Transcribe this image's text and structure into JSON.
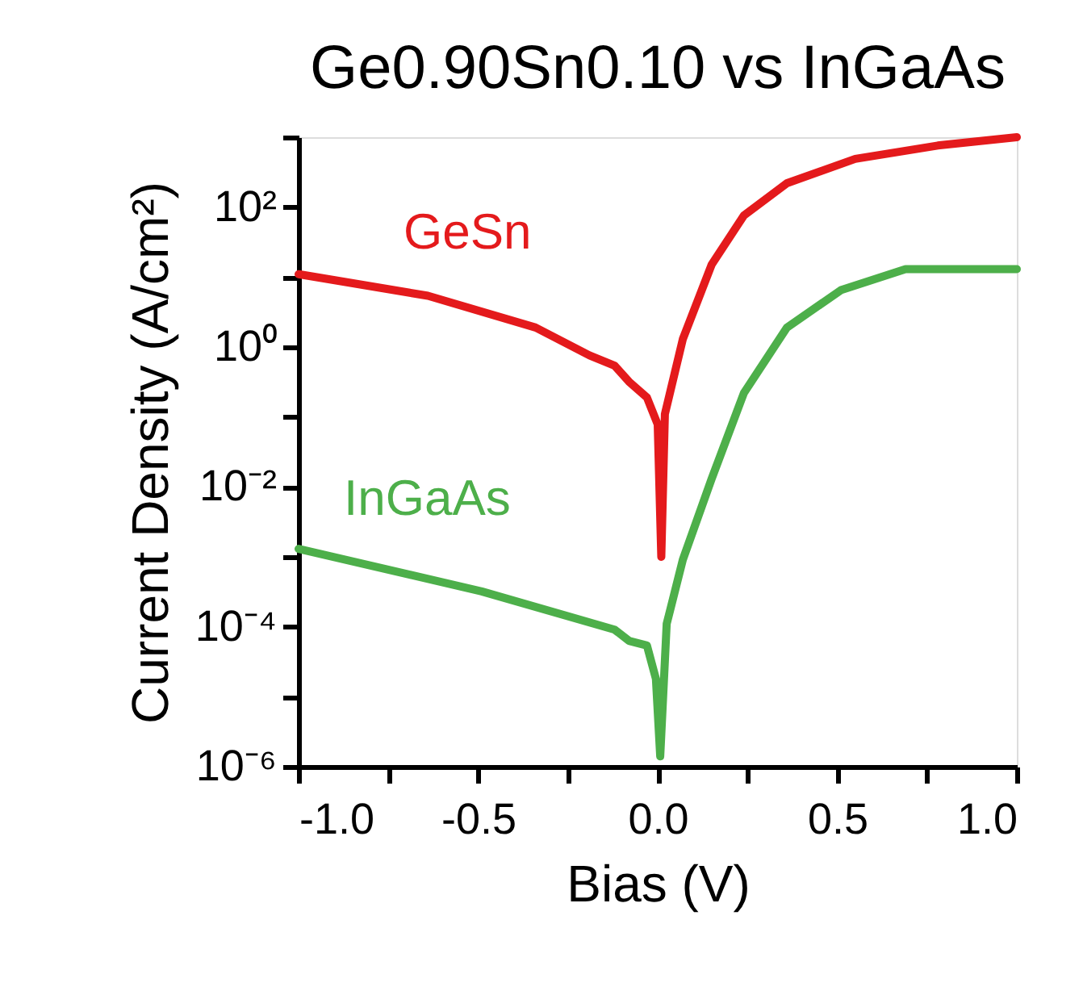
{
  "chart_data": {
    "type": "line",
    "title": "Ge0.90Sn0.10 vs InGaAs",
    "xlabel": "Bias (V)",
    "ylabel": "Current Density (A/cm²)",
    "log": "y",
    "grid": false,
    "legend": false,
    "marker": "none",
    "line_style": "solid",
    "xlim": [
      -1.0,
      1.0
    ],
    "xticks": [
      {
        "value": -1.0,
        "label": "-1.0"
      },
      {
        "value": -0.75,
        "label": null
      },
      {
        "value": -0.5,
        "label": "-0.5"
      },
      {
        "value": -0.25,
        "label": null
      },
      {
        "value": 0.0,
        "label": "0.0"
      },
      {
        "value": 0.25,
        "label": null
      },
      {
        "value": 0.5,
        "label": "0.5"
      },
      {
        "value": 0.75,
        "label": null
      },
      {
        "value": 1.0,
        "label": "1.0"
      }
    ],
    "ylim": [
      1e-06,
      1000
    ],
    "yticks": [
      {
        "value": 1e-06,
        "label": "10⁻⁶"
      },
      {
        "value": 1e-05,
        "label": null
      },
      {
        "value": 0.0001,
        "label": "10⁻⁴"
      },
      {
        "value": 0.001,
        "label": null
      },
      {
        "value": 0.01,
        "label": "10⁻²"
      },
      {
        "value": 0.1,
        "label": null
      },
      {
        "value": 1,
        "label": "10⁰"
      },
      {
        "value": 10,
        "label": null
      },
      {
        "value": 100,
        "label": "10²"
      },
      {
        "value": 1000,
        "label": null
      }
    ],
    "series": [
      {
        "name": "GeSn",
        "color": "#e41a1c",
        "x": [
          -1.0,
          -0.64,
          -0.34,
          -0.19,
          -0.12,
          -0.08,
          -0.03,
          0.0,
          0.01,
          0.02,
          0.07,
          0.15,
          0.24,
          0.36,
          0.55,
          0.78,
          1.0
        ],
        "values": [
          11,
          5.4,
          1.9,
          0.76,
          0.54,
          0.32,
          0.19,
          0.078,
          0.001,
          0.11,
          1.3,
          15,
          76,
          220,
          490,
          760,
          1000
        ]
      },
      {
        "name": "InGaAs",
        "color": "#4daf4a",
        "x": [
          -1.0,
          -0.49,
          -0.12,
          -0.08,
          -0.03,
          -0.005,
          0.007,
          0.025,
          0.07,
          0.15,
          0.24,
          0.36,
          0.51,
          0.69,
          1.0
        ],
        "values": [
          0.0013,
          0.00032,
          9.1e-05,
          6.3e-05,
          5.4e-05,
          1.8e-05,
          1.4e-06,
          0.00011,
          0.00091,
          0.013,
          0.22,
          1.9,
          6.5,
          13,
          13
        ]
      }
    ]
  }
}
